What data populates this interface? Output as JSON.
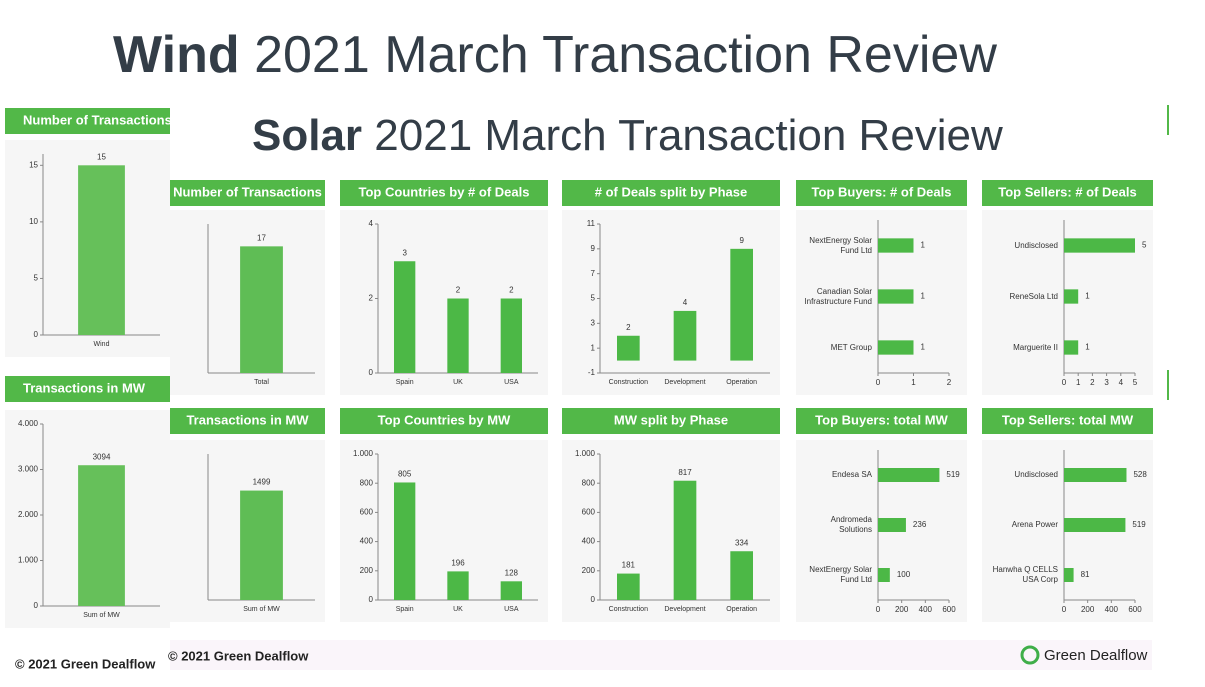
{
  "wind_slide": {
    "title_bold": "Wind",
    "title_rest": "2021 March Transaction Review",
    "footer": "© 2021 Green Dealflow"
  },
  "solar_slide": {
    "title_bold": "Solar",
    "title_rest": "2021 March Transaction Review",
    "footer": "© 2021 Green Dealflow",
    "logo": "Green Dealflow"
  },
  "chart_data": [
    {
      "type": "bar",
      "title": "Number of Transactions",
      "categories": [
        "Wind"
      ],
      "values": [
        15
      ],
      "color": "#66c05a",
      "ylim": [
        0,
        16
      ],
      "yticks": [
        0,
        5,
        10,
        15
      ]
    },
    {
      "type": "bar",
      "title": "Transactions in MW",
      "categories": [
        "Sum of MW"
      ],
      "values": [
        3094
      ],
      "color": "#66c05a",
      "ylim": [
        0,
        4000
      ],
      "yticks": [
        0,
        {
          "value": 1000,
          "label": "1.000"
        },
        {
          "value": 2000,
          "label": "2.000"
        },
        {
          "value": 3000,
          "label": "3.000"
        },
        {
          "value": 4000,
          "label": "4.000"
        }
      ]
    },
    {
      "type": "bar",
      "title": "Number of Transactions",
      "categories": [
        "Total"
      ],
      "values": [
        17
      ],
      "color": "#5fbd55",
      "ylim": [
        0,
        20
      ]
    },
    {
      "type": "bar",
      "title": "Top Countries by # of Deals",
      "categories": [
        "Spain",
        "UK",
        "USA"
      ],
      "values": [
        3,
        2,
        2
      ],
      "color": "#4cb846",
      "ylim": [
        0,
        4
      ],
      "yticks": [
        0,
        2,
        4
      ]
    },
    {
      "type": "bar",
      "title": "# of Deals split by Phase",
      "categories": [
        "Construction",
        "Development",
        "Operation"
      ],
      "values": [
        2,
        4,
        9
      ],
      "color": "#4cb846",
      "ylim": [
        -1,
        11
      ],
      "yticks": [
        -1,
        1,
        3,
        5,
        7,
        9,
        11
      ]
    },
    {
      "type": "barh",
      "title": "Top Buyers: # of Deals",
      "categories": [
        "NextEnergy Solar Fund Ltd",
        "Canadian Solar Infrastructure Fund",
        "MET Group"
      ],
      "values": [
        1,
        1,
        1
      ],
      "color": "#4cb846",
      "xlim": [
        0,
        2
      ],
      "xticks": [
        0,
        1,
        2
      ]
    },
    {
      "type": "barh",
      "title": "Top Sellers: # of Deals",
      "categories": [
        "Undisclosed",
        "ReneSola Ltd",
        "Marguerite II"
      ],
      "values": [
        5,
        1,
        1
      ],
      "color": "#4cb846",
      "xlim": [
        0,
        5
      ],
      "xticks": [
        0,
        1,
        2,
        3,
        4,
        5
      ]
    },
    {
      "type": "bar",
      "title": "Transactions in MW",
      "categories": [
        "Sum of MW"
      ],
      "values": [
        1499
      ],
      "color": "#5fbd55",
      "ylim": [
        0,
        2000
      ]
    },
    {
      "type": "bar",
      "title": "Top Countries by MW",
      "categories": [
        "Spain",
        "UK",
        "USA"
      ],
      "values": [
        805,
        196,
        128
      ],
      "color": "#4cb846",
      "ylim": [
        0,
        1000
      ],
      "yticks": [
        0,
        200,
        400,
        600,
        800,
        {
          "value": 1000,
          "label": "1.000"
        }
      ]
    },
    {
      "type": "bar",
      "title": "MW split by Phase",
      "categories": [
        "Construction",
        "Development",
        "Operation"
      ],
      "values": [
        181,
        817,
        334
      ],
      "color": "#4cb846",
      "ylim": [
        0,
        1000
      ],
      "yticks": [
        0,
        200,
        400,
        600,
        800,
        {
          "value": 1000,
          "label": "1.000"
        }
      ]
    },
    {
      "type": "barh",
      "title": "Top Buyers: total MW",
      "categories": [
        "Endesa SA",
        "Andromeda Solutions",
        "NextEnergy Solar Fund Ltd"
      ],
      "values": [
        519,
        236,
        100
      ],
      "color": "#4cb846",
      "xlim": [
        0,
        600
      ],
      "xticks": [
        0,
        200,
        400,
        600
      ]
    },
    {
      "type": "barh",
      "title": "Top Sellers: total MW",
      "categories": [
        "Undisclosed",
        "Arena Power",
        "Hanwha Q CELLS USA Corp"
      ],
      "values": [
        528,
        519,
        81
      ],
      "color": "#4cb846",
      "xlim": [
        0,
        600
      ],
      "xticks": [
        0,
        200,
        400,
        600
      ]
    }
  ]
}
